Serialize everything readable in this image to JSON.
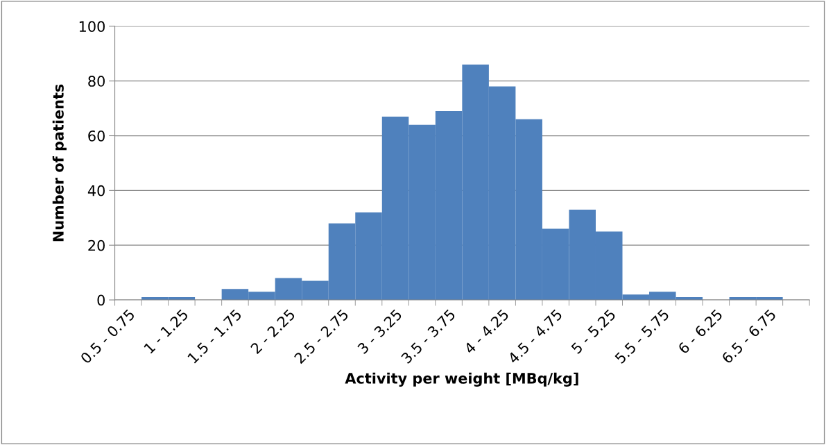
{
  "chart_data": {
    "type": "bar",
    "xlabel": "Activity per weight [MBq/kg]",
    "ylabel": "Number of patients",
    "categories": [
      "0.5 - 0.75",
      null,
      "1 - 1.25",
      null,
      "1.5 - 1.75",
      null,
      "2 - 2.25",
      null,
      "2.5 - 2.75",
      null,
      "3 - 3.25",
      null,
      "3.5 - 3.75",
      null,
      "4 - 4.25",
      null,
      "4.5 - 4.75",
      null,
      "5 - 5.25",
      null,
      "5.5 - 5.75",
      null,
      "6 - 6.25",
      null,
      "6.5 - 6.75",
      null
    ],
    "values": [
      0,
      1,
      1,
      0,
      4,
      3,
      8,
      7,
      28,
      32,
      67,
      64,
      69,
      86,
      78,
      66,
      26,
      33,
      25,
      2,
      3,
      1,
      0,
      1,
      1,
      0
    ],
    "color": "#4f81bd",
    "ylim": [
      0,
      100
    ],
    "yticks": [
      0,
      20,
      40,
      60,
      80,
      100
    ],
    "grid": "y",
    "legend": false
  }
}
